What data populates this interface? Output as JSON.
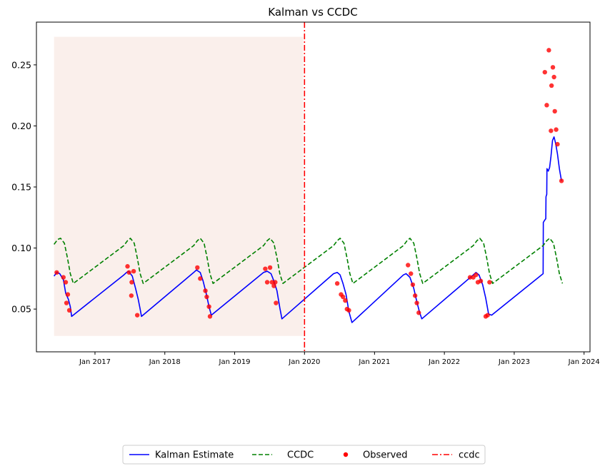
{
  "chart_data": {
    "type": "line",
    "title": "Kalman vs CCDC",
    "xlabel": "",
    "ylabel": "",
    "x_axis": {
      "type": "date",
      "range": [
        "2016-03-01",
        "2024-02-01"
      ],
      "ticks": [
        "2017-01-01",
        "2018-01-01",
        "2019-01-01",
        "2020-01-01",
        "2021-01-01",
        "2022-01-01",
        "2023-01-01",
        "2024-01-01"
      ],
      "tick_labels": [
        "Jan 2017",
        "Jan 2018",
        "Jan 2019",
        "Jan 2020",
        "Jan 2021",
        "Jan 2022",
        "Jan 2023",
        "Jan 2024"
      ]
    },
    "y_axis": {
      "range": [
        0.015,
        0.285
      ],
      "ticks": [
        0.05,
        0.1,
        0.15,
        0.2,
        0.25
      ],
      "tick_labels": [
        "0.05",
        "0.10",
        "0.15",
        "0.20",
        "0.25"
      ]
    },
    "grid": false,
    "legend": {
      "placement": "bottom-center-outside",
      "columns": 4
    },
    "shaded_region": {
      "x_start": "2016-06-01",
      "x_end": "2019-12-25",
      "y_start": 0.028,
      "y_end": 0.273,
      "color": "#f5dcd2"
    },
    "vertical_line": {
      "name": "ccdc",
      "x": "2020-01-01",
      "color": "#ff0000",
      "style": "dashdot"
    },
    "series": [
      {
        "name": "Kalman Estimate",
        "kind": "line",
        "color": "#0000ff",
        "style": "solid",
        "points": [
          [
            "2016-06-01",
            0.077
          ],
          [
            "2016-06-15",
            0.08
          ],
          [
            "2016-07-01",
            0.079
          ],
          [
            "2016-07-20",
            0.074
          ],
          [
            "2016-08-01",
            0.063
          ],
          [
            "2016-08-15",
            0.058
          ],
          [
            "2016-08-25",
            0.052
          ],
          [
            "2016-09-01",
            0.044
          ],
          [
            "2017-06-01",
            0.078
          ],
          [
            "2017-06-15",
            0.08
          ],
          [
            "2017-06-25",
            0.081
          ],
          [
            "2017-07-15",
            0.077
          ],
          [
            "2017-08-01",
            0.067
          ],
          [
            "2017-08-15",
            0.058
          ],
          [
            "2017-08-25",
            0.05
          ],
          [
            "2017-09-01",
            0.044
          ],
          [
            "2018-06-01",
            0.08
          ],
          [
            "2018-06-15",
            0.082
          ],
          [
            "2018-07-05",
            0.08
          ],
          [
            "2018-07-20",
            0.073
          ],
          [
            "2018-08-05",
            0.063
          ],
          [
            "2018-08-20",
            0.052
          ],
          [
            "2018-09-01",
            0.045
          ],
          [
            "2019-06-01",
            0.08
          ],
          [
            "2019-06-20",
            0.081
          ],
          [
            "2019-07-10",
            0.079
          ],
          [
            "2019-07-25",
            0.073
          ],
          [
            "2019-08-10",
            0.065
          ],
          [
            "2019-08-25",
            0.051
          ],
          [
            "2019-09-05",
            0.042
          ],
          [
            "2020-06-01",
            0.079
          ],
          [
            "2020-06-20",
            0.08
          ],
          [
            "2020-07-05",
            0.078
          ],
          [
            "2020-07-20",
            0.071
          ],
          [
            "2020-08-05",
            0.062
          ],
          [
            "2020-08-20",
            0.048
          ],
          [
            "2020-09-05",
            0.039
          ],
          [
            "2021-06-01",
            0.078
          ],
          [
            "2021-06-15",
            0.079
          ],
          [
            "2021-07-05",
            0.076
          ],
          [
            "2021-07-25",
            0.067
          ],
          [
            "2021-08-10",
            0.056
          ],
          [
            "2021-08-25",
            0.047
          ],
          [
            "2021-09-05",
            0.042
          ],
          [
            "2022-06-01",
            0.078
          ],
          [
            "2022-06-15",
            0.08
          ],
          [
            "2022-07-01",
            0.078
          ],
          [
            "2022-07-20",
            0.07
          ],
          [
            "2022-08-05",
            0.059
          ],
          [
            "2022-08-20",
            0.046
          ],
          [
            "2022-09-05",
            0.045
          ],
          [
            "2023-06-01",
            0.079
          ],
          [
            "2023-06-02",
            0.121
          ],
          [
            "2023-06-10",
            0.123
          ],
          [
            "2023-06-15",
            0.124
          ],
          [
            "2023-06-16",
            0.142
          ],
          [
            "2023-06-20",
            0.144
          ],
          [
            "2023-06-21",
            0.165
          ],
          [
            "2023-06-28",
            0.163
          ],
          [
            "2023-07-05",
            0.166
          ],
          [
            "2023-07-12",
            0.175
          ],
          [
            "2023-07-20",
            0.188
          ],
          [
            "2023-07-28",
            0.191
          ],
          [
            "2023-08-05",
            0.186
          ],
          [
            "2023-08-15",
            0.177
          ],
          [
            "2023-08-25",
            0.165
          ],
          [
            "2023-09-05",
            0.155
          ]
        ]
      },
      {
        "name": "CCDC",
        "kind": "line",
        "color": "#008000",
        "style": "dashed",
        "points": [
          [
            "2016-06-01",
            0.103
          ],
          [
            "2016-06-20",
            0.107
          ],
          [
            "2016-07-05",
            0.108
          ],
          [
            "2016-07-25",
            0.104
          ],
          [
            "2016-08-10",
            0.092
          ],
          [
            "2016-08-25",
            0.079
          ],
          [
            "2016-09-10",
            0.071
          ],
          [
            "2017-06-01",
            0.102
          ],
          [
            "2017-06-20",
            0.106
          ],
          [
            "2017-07-05",
            0.108
          ],
          [
            "2017-07-25",
            0.104
          ],
          [
            "2017-08-10",
            0.092
          ],
          [
            "2017-08-25",
            0.079
          ],
          [
            "2017-09-10",
            0.071
          ],
          [
            "2018-06-01",
            0.102
          ],
          [
            "2018-06-20",
            0.106
          ],
          [
            "2018-07-05",
            0.108
          ],
          [
            "2018-07-25",
            0.104
          ],
          [
            "2018-08-10",
            0.092
          ],
          [
            "2018-08-25",
            0.079
          ],
          [
            "2018-09-10",
            0.071
          ],
          [
            "2019-06-01",
            0.102
          ],
          [
            "2019-06-20",
            0.106
          ],
          [
            "2019-07-05",
            0.108
          ],
          [
            "2019-07-25",
            0.104
          ],
          [
            "2019-08-10",
            0.092
          ],
          [
            "2019-08-25",
            0.079
          ],
          [
            "2019-09-10",
            0.071
          ],
          [
            "2020-06-01",
            0.102
          ],
          [
            "2020-06-20",
            0.106
          ],
          [
            "2020-07-05",
            0.108
          ],
          [
            "2020-07-25",
            0.104
          ],
          [
            "2020-08-10",
            0.092
          ],
          [
            "2020-08-25",
            0.079
          ],
          [
            "2020-09-10",
            0.071
          ],
          [
            "2021-06-01",
            0.102
          ],
          [
            "2021-06-20",
            0.106
          ],
          [
            "2021-07-05",
            0.108
          ],
          [
            "2021-07-25",
            0.104
          ],
          [
            "2021-08-10",
            0.092
          ],
          [
            "2021-08-25",
            0.079
          ],
          [
            "2021-09-10",
            0.071
          ],
          [
            "2022-06-01",
            0.102
          ],
          [
            "2022-06-20",
            0.106
          ],
          [
            "2022-07-05",
            0.108
          ],
          [
            "2022-07-25",
            0.104
          ],
          [
            "2022-08-10",
            0.092
          ],
          [
            "2022-08-25",
            0.079
          ],
          [
            "2022-09-10",
            0.071
          ],
          [
            "2023-06-01",
            0.102
          ],
          [
            "2023-06-20",
            0.106
          ],
          [
            "2023-07-05",
            0.108
          ],
          [
            "2023-07-25",
            0.104
          ],
          [
            "2023-08-10",
            0.092
          ],
          [
            "2023-08-25",
            0.079
          ],
          [
            "2023-09-10",
            0.071
          ]
        ]
      },
      {
        "name": "Observed",
        "kind": "scatter",
        "color": "#ff0000",
        "points": [
          [
            "2016-06-15",
            0.08
          ],
          [
            "2016-07-20",
            0.076
          ],
          [
            "2016-08-01",
            0.072
          ],
          [
            "2016-08-05",
            0.055
          ],
          [
            "2016-08-12",
            0.062
          ],
          [
            "2016-08-20",
            0.049
          ],
          [
            "2017-06-20",
            0.085
          ],
          [
            "2017-06-28",
            0.08
          ],
          [
            "2017-07-10",
            0.061
          ],
          [
            "2017-07-12",
            0.072
          ],
          [
            "2017-07-22",
            0.081
          ],
          [
            "2017-08-10",
            0.045
          ],
          [
            "2018-06-20",
            0.084
          ],
          [
            "2018-07-05",
            0.075
          ],
          [
            "2018-08-01",
            0.065
          ],
          [
            "2018-08-08",
            0.06
          ],
          [
            "2018-08-20",
            0.052
          ],
          [
            "2018-08-25",
            0.044
          ],
          [
            "2019-06-10",
            0.083
          ],
          [
            "2019-06-20",
            0.072
          ],
          [
            "2019-07-05",
            0.084
          ],
          [
            "2019-07-15",
            0.072
          ],
          [
            "2019-07-25",
            0.069
          ],
          [
            "2019-08-01",
            0.072
          ],
          [
            "2019-08-05",
            0.055
          ],
          [
            "2020-06-20",
            0.071
          ],
          [
            "2020-07-10",
            0.062
          ],
          [
            "2020-07-20",
            0.06
          ],
          [
            "2020-08-01",
            0.057
          ],
          [
            "2020-08-10",
            0.05
          ],
          [
            "2020-08-20",
            0.049
          ],
          [
            "2021-06-25",
            0.086
          ],
          [
            "2021-07-10",
            0.079
          ],
          [
            "2021-07-20",
            0.07
          ],
          [
            "2021-08-01",
            0.061
          ],
          [
            "2021-08-10",
            0.055
          ],
          [
            "2021-08-20",
            0.047
          ],
          [
            "2022-05-15",
            0.076
          ],
          [
            "2022-06-01",
            0.076
          ],
          [
            "2022-06-15",
            0.078
          ],
          [
            "2022-06-25",
            0.072
          ],
          [
            "2022-07-10",
            0.073
          ],
          [
            "2022-08-05",
            0.044
          ],
          [
            "2022-08-15",
            0.045
          ],
          [
            "2022-08-25",
            0.072
          ],
          [
            "2023-06-10",
            0.244
          ],
          [
            "2023-06-20",
            0.217
          ],
          [
            "2023-07-01",
            0.262
          ],
          [
            "2023-07-12",
            0.196
          ],
          [
            "2023-07-15",
            0.233
          ],
          [
            "2023-07-22",
            0.248
          ],
          [
            "2023-07-28",
            0.24
          ],
          [
            "2023-08-01",
            0.212
          ],
          [
            "2023-08-08",
            0.197
          ],
          [
            "2023-08-15",
            0.185
          ],
          [
            "2023-09-05",
            0.155
          ]
        ]
      }
    ]
  }
}
